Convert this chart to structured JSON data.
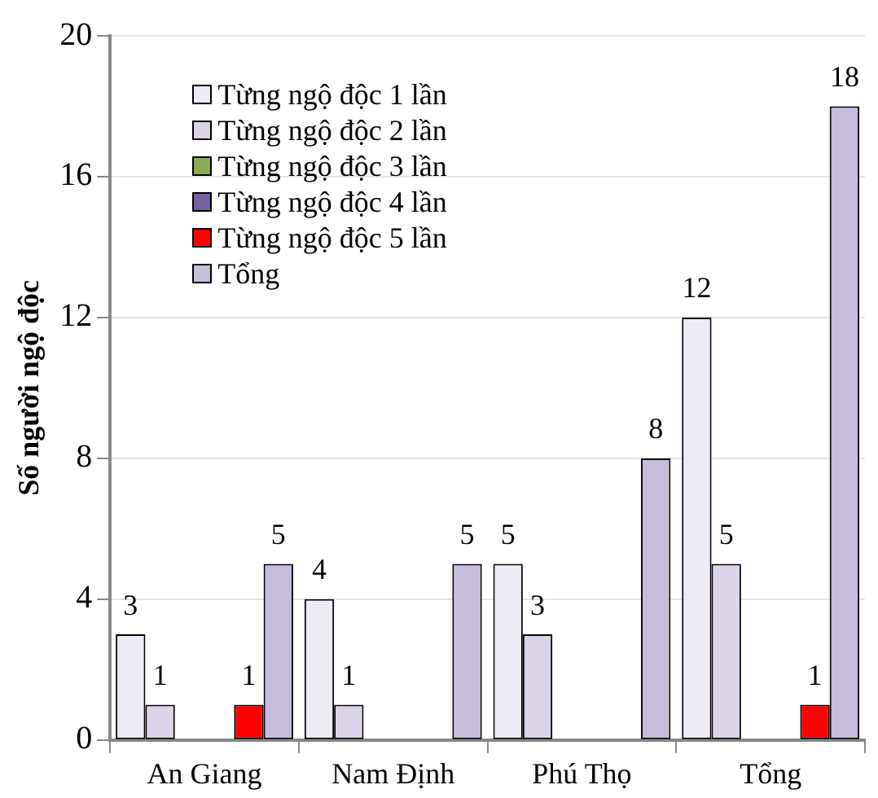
{
  "chart_data": {
    "type": "bar",
    "ylabel": "Số người ngộ độc",
    "categories": [
      "An Giang",
      "Nam Định",
      "Phú Thọ",
      "Tổng"
    ],
    "series": [
      {
        "name": "Từng ngộ độc 1 lần",
        "color": "#eeebf5",
        "values": [
          3,
          4,
          5,
          12
        ],
        "value_labels": [
          "3",
          "4",
          "5",
          "12"
        ]
      },
      {
        "name": "Từng ngộ độc 2 lần",
        "color": "#dbd4e9",
        "values": [
          1,
          1,
          3,
          5
        ],
        "value_labels": [
          "1",
          "1",
          "3",
          "5"
        ]
      },
      {
        "name": "Từng ngộ độc 3 lần",
        "color": "#8bab4f",
        "values": [
          0,
          0,
          0,
          0
        ],
        "value_labels": [
          null,
          null,
          null,
          null
        ]
      },
      {
        "name": "Từng ngộ độc 4 lần",
        "color": "#7560a0",
        "values": [
          0,
          0,
          0,
          0
        ],
        "value_labels": [
          null,
          null,
          null,
          null
        ]
      },
      {
        "name": "Từng ngộ độc 5 lần",
        "color": "#ff0000",
        "values": [
          1,
          0,
          0,
          1
        ],
        "value_labels": [
          "1",
          null,
          null,
          "1"
        ]
      },
      {
        "name": "Tổng",
        "color": "#c6bddc",
        "values": [
          5,
          5,
          8,
          18
        ],
        "value_labels": [
          "5",
          "5",
          "8",
          "18"
        ]
      }
    ],
    "ylim": [
      0,
      20
    ],
    "yticks": [
      0,
      4,
      8,
      12,
      16,
      20
    ],
    "grid": "y",
    "legend": "top left"
  }
}
